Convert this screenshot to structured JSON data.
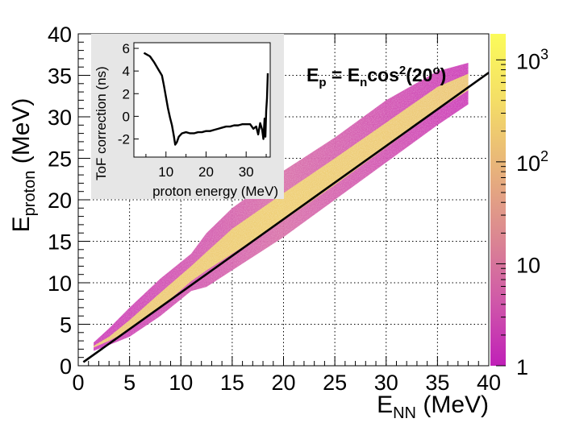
{
  "chart_data": [
    {
      "type": "heatmap",
      "xlabel": "E",
      "xlabel_sub": "NN",
      "xlabel_unit": " (MeV)",
      "ylabel": "E",
      "ylabel_sub": "proton",
      "ylabel_unit": " (MeV)",
      "xlim": [
        0,
        40
      ],
      "ylim": [
        0,
        40
      ],
      "xticks": [
        "0",
        "5",
        "10",
        "15",
        "20",
        "25",
        "30",
        "35",
        "40"
      ],
      "yticks": [
        "0",
        "5",
        "10",
        "15",
        "20",
        "25",
        "30",
        "35",
        "40"
      ],
      "grid": true,
      "log_color_scale": true,
      "colorbar": {
        "min": 1,
        "max": 1800,
        "labels": [
          "1",
          "10",
          "10",
          "10"
        ],
        "label_exponents": [
          "",
          "",
          "2",
          "3"
        ],
        "label_values": [
          1,
          10,
          100,
          1000
        ],
        "colors": [
          "#c020b8",
          "#d05aa8",
          "#dc8a90",
          "#e8b47a",
          "#f4de66",
          "#fbfb5a"
        ]
      },
      "annotation": {
        "E": "E",
        "p": "p",
        "eq": " = E",
        "n": "n",
        "cos": "cos",
        "sq": "2",
        "angle": "(20",
        "deg": "o",
        "close": ")"
      },
      "band": {
        "x": [
          1.5,
          3,
          5,
          8,
          11,
          12.5,
          15,
          20,
          25,
          30,
          35,
          38
        ],
        "low": [
          1.8,
          2.5,
          3.5,
          6,
          9,
          9.5,
          11.5,
          15.5,
          20,
          24.5,
          29,
          31.5
        ],
        "high": [
          2.8,
          4.5,
          7,
          10.5,
          13.5,
          16,
          19,
          23.5,
          27.5,
          32,
          35.5,
          36.5
        ],
        "core_low": [
          2.2,
          3.0,
          4.3,
          7.0,
          10.2,
          11.5,
          13.5,
          17.5,
          21.8,
          26.3,
          30.8,
          33.2
        ],
        "core_high": [
          2.4,
          3.5,
          5.5,
          8.8,
          12.0,
          13.7,
          16.5,
          20.8,
          25.0,
          29.3,
          33.6,
          35.2
        ]
      },
      "line": {
        "name": "",
        "x": [
          0.5,
          40
        ],
        "y": [
          0.44,
          35.32
        ]
      }
    },
    {
      "type": "line",
      "xlabel": "proton energy (MeV)",
      "ylabel": "ToF correction (ns)",
      "xlim": [
        2,
        36
      ],
      "ylim": [
        -3.6,
        6.5
      ],
      "xticks": [
        "10",
        "20",
        "30"
      ],
      "yticks": [
        "-2",
        "0",
        "2",
        "4",
        "6"
      ],
      "grid": false,
      "series": [
        {
          "x": [
            4.5,
            5,
            6,
            7,
            8,
            9,
            9.5,
            10,
            10.5,
            11,
            11.5,
            12,
            12.3,
            12.7,
            13.2,
            14,
            15,
            16,
            17,
            18,
            19,
            20,
            21,
            22,
            23,
            24,
            25,
            26,
            27,
            28,
            29,
            30,
            31,
            31.8,
            32.5,
            33,
            33.5,
            34,
            34.3,
            34.6,
            34.8,
            35,
            35.2,
            35.4
          ],
          "y": [
            5.6,
            5.5,
            5.3,
            4.8,
            4.2,
            3.6,
            2.7,
            1.7,
            0.7,
            -0.1,
            -0.8,
            -1.8,
            -2.5,
            -2.3,
            -1.8,
            -1.5,
            -1.4,
            -1.5,
            -1.5,
            -1.4,
            -1.4,
            -1.3,
            -1.3,
            -1.2,
            -1.1,
            -1.0,
            -0.9,
            -0.9,
            -0.8,
            -0.8,
            -0.7,
            -0.7,
            -0.7,
            -1.1,
            -0.9,
            -1.6,
            -0.6,
            -1.2,
            -2.0,
            -0.2,
            -1.8,
            0.5,
            1.6,
            3.8
          ]
        }
      ]
    }
  ]
}
